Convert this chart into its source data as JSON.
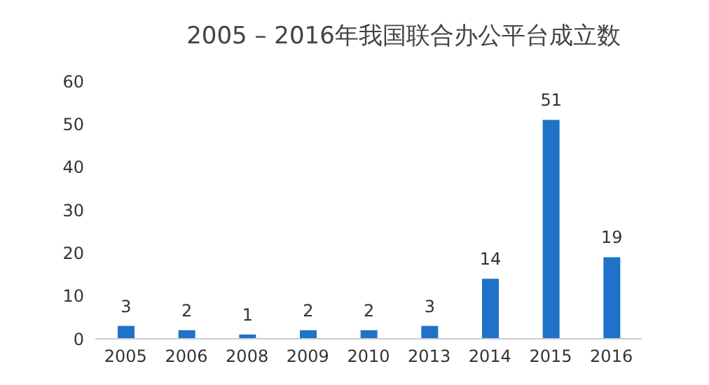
{
  "chart_data": {
    "type": "bar",
    "title": "2005 – 2016年我国联合办公平台成立数",
    "categories": [
      "2005",
      "2006",
      "2008",
      "2009",
      "2010",
      "2013",
      "2014",
      "2015",
      "2016"
    ],
    "values": [
      3,
      2,
      1,
      2,
      2,
      3,
      14,
      51,
      19
    ],
    "color": "#1f72c8",
    "ylim": [
      0,
      60
    ],
    "yticks": [
      0,
      10,
      20,
      30,
      40,
      50,
      60
    ],
    "data_labels": true,
    "grid": false
  }
}
